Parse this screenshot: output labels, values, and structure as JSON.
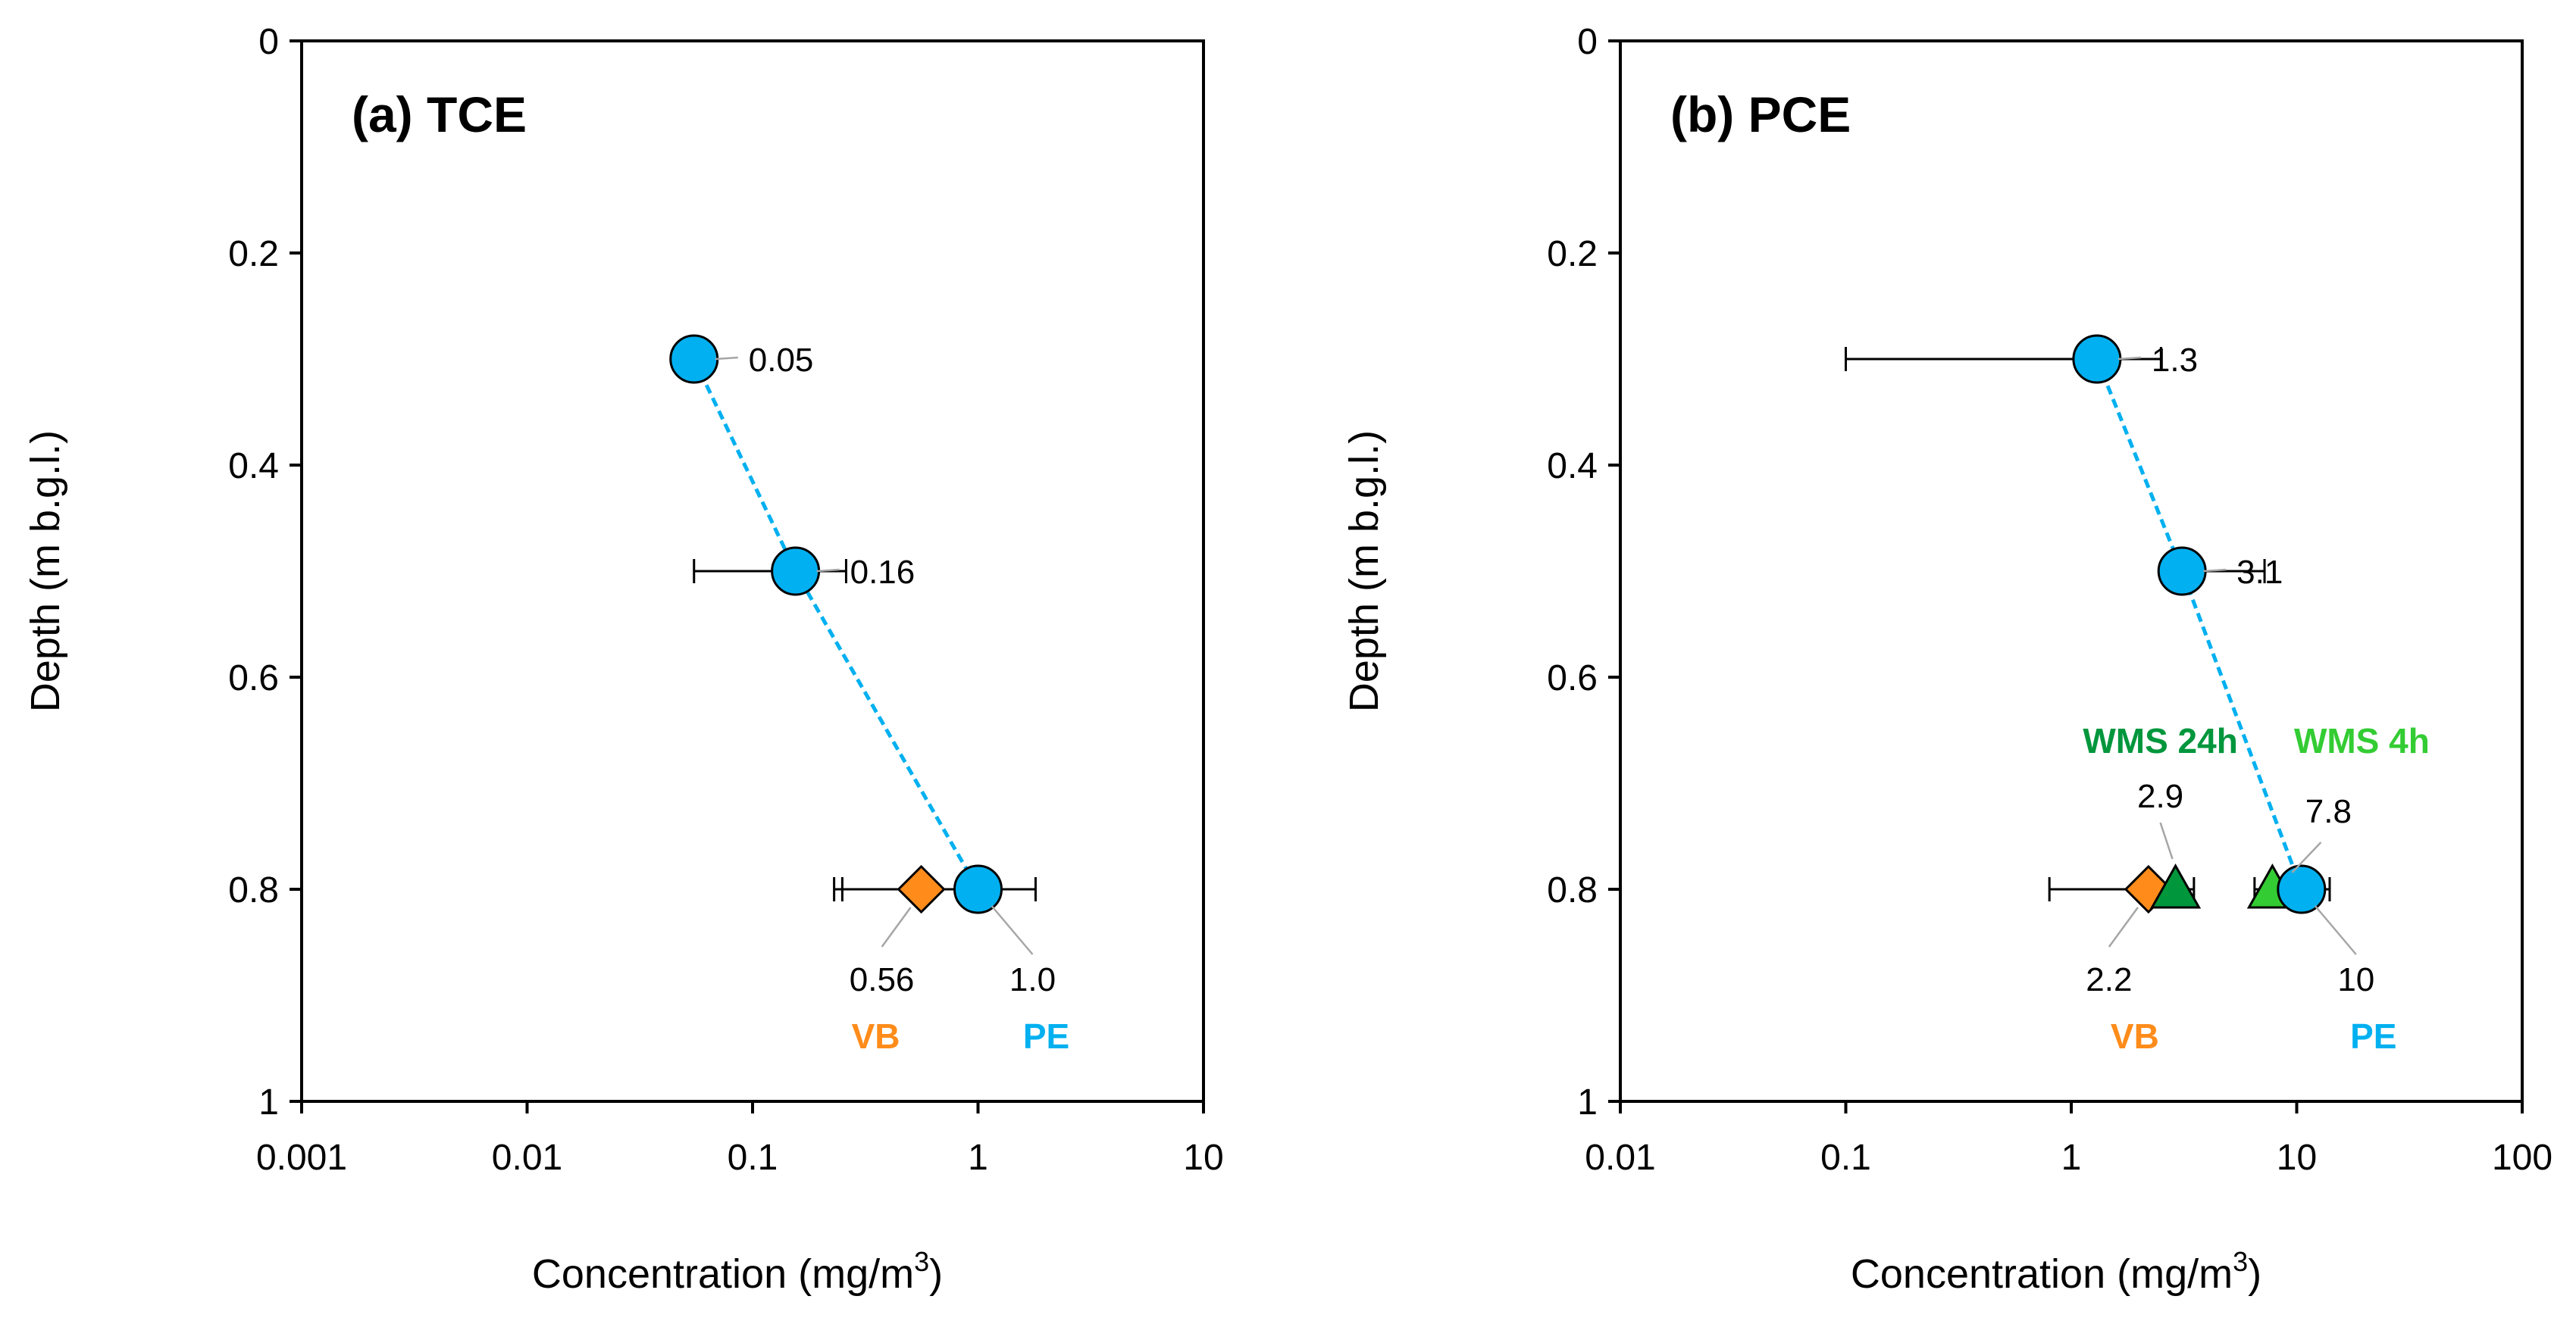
{
  "colors": {
    "pe": "#00B0F0",
    "vb": "#FF8C1A",
    "wms24": "#00963C",
    "wms4": "#33CC33",
    "leader": "#A6A6A6"
  },
  "chart_data": [
    {
      "type": "scatter",
      "title": "(a) TCE",
      "xlabel": "Concentration (mg/m",
      "xlabel_sup": "3",
      "xlabel_close": ")",
      "ylabel": "Depth (m b.g.l.)",
      "xscale": "log",
      "xlim": [
        0.001,
        10
      ],
      "ylim": [
        0,
        1
      ],
      "y_inverted": true,
      "x_ticks": [
        {
          "value": 0.001,
          "label": "0.001"
        },
        {
          "value": 0.01,
          "label": "0.01"
        },
        {
          "value": 0.1,
          "label": "0.1"
        },
        {
          "value": 1,
          "label": "1"
        },
        {
          "value": 10,
          "label": "10"
        }
      ],
      "y_ticks": [
        {
          "value": 0,
          "label": "0"
        },
        {
          "value": 0.2,
          "label": "0.2"
        },
        {
          "value": 0.4,
          "label": "0.4"
        },
        {
          "value": 0.6,
          "label": "0.6"
        },
        {
          "value": 0.8,
          "label": "0.8"
        },
        {
          "value": 1,
          "label": "1"
        }
      ],
      "series": [
        {
          "name": "PE",
          "marker": "circle",
          "color_key": "pe",
          "connected": true,
          "label_dir": "below-right",
          "points": [
            {
              "x": 0.055,
              "y": 0.3,
              "err": null,
              "label": "0.05",
              "label_dir": "right"
            },
            {
              "x": 0.155,
              "y": 0.5,
              "err": [
                0.055,
                0.26
              ],
              "label": "0.16",
              "label_dir": "right"
            },
            {
              "x": 1.0,
              "y": 0.8,
              "err": [
                0.25,
                1.8
              ],
              "label": "1.0",
              "label_dir": "below-right"
            }
          ]
        },
        {
          "name": "VB",
          "marker": "diamond",
          "color_key": "vb",
          "connected": false,
          "label_dir": "below-left",
          "points": [
            {
              "x": 0.56,
              "y": 0.8,
              "err": [
                0.23,
                null
              ],
              "label": "0.56",
              "label_dir": "below-left"
            }
          ]
        }
      ]
    },
    {
      "type": "scatter",
      "title": "(b) PCE",
      "xlabel": "Concentration (mg/m",
      "xlabel_sup": "3",
      "xlabel_close": ")",
      "ylabel": "Depth (m b.g.l.)",
      "xscale": "log",
      "xlim": [
        0.01,
        100
      ],
      "ylim": [
        0,
        1
      ],
      "y_inverted": true,
      "x_ticks": [
        {
          "value": 0.01,
          "label": "0.01"
        },
        {
          "value": 0.1,
          "label": "0.1"
        },
        {
          "value": 1,
          "label": "1"
        },
        {
          "value": 10,
          "label": "10"
        },
        {
          "value": 100,
          "label": "100"
        }
      ],
      "y_ticks": [
        {
          "value": 0,
          "label": "0"
        },
        {
          "value": 0.2,
          "label": "0.2"
        },
        {
          "value": 0.4,
          "label": "0.4"
        },
        {
          "value": 0.6,
          "label": "0.6"
        },
        {
          "value": 0.8,
          "label": "0.8"
        },
        {
          "value": 1,
          "label": "1"
        }
      ],
      "series": [
        {
          "name": "PE",
          "marker": "circle",
          "color_key": "pe",
          "connected": true,
          "label_dir": "below-right",
          "points": [
            {
              "x": 1.3,
              "y": 0.3,
              "err": [
                0.1,
                2.5
              ],
              "label": "1.3",
              "label_dir": "right"
            },
            {
              "x": 3.1,
              "y": 0.5,
              "err": [
                null,
                7.2
              ],
              "label": "3.1",
              "label_dir": "right"
            },
            {
              "x": 10.5,
              "y": 0.8,
              "err": [
                null,
                14
              ],
              "label": "10",
              "label_dir": "below-right"
            }
          ]
        },
        {
          "name": "VB",
          "marker": "diamond",
          "color_key": "vb",
          "connected": false,
          "label_dir": "below-left",
          "points": [
            {
              "x": 2.2,
              "y": 0.8,
              "err": [
                0.8,
                3.5
              ],
              "label": "2.2",
              "label_dir": "below-left"
            }
          ]
        },
        {
          "name": "WMS 24h",
          "marker": "triangle",
          "color_key": "wms24",
          "connected": false,
          "label_dir": "above",
          "points": [
            {
              "x": 2.9,
              "y": 0.8,
              "err": null,
              "label": "2.9",
              "label_dir": "above"
            }
          ]
        },
        {
          "name": "WMS 4h",
          "marker": "triangle",
          "color_key": "wms4",
          "connected": false,
          "label_dir": "above-right",
          "points": [
            {
              "x": 7.8,
              "y": 0.8,
              "err": [
                6.5,
                null
              ],
              "label": "7.8",
              "label_dir": "above-right"
            }
          ]
        }
      ]
    }
  ]
}
